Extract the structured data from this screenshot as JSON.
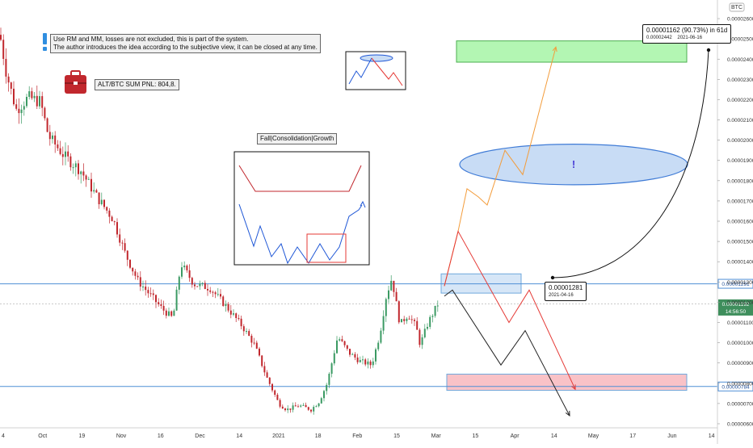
{
  "chart_data": {
    "type": "candlestick",
    "symbol_unit": "BTC",
    "x_tick_labels": [
      "4",
      "Oct",
      "19",
      "Nov",
      "16",
      "Dec",
      "14",
      "2021",
      "18",
      "Feb",
      "15",
      "Mar",
      "15",
      "Apr",
      "14",
      "May",
      "17",
      "Jun",
      "14"
    ],
    "y_tick_labels": [
      "0.00002600",
      "0.00002500",
      "0.00002400",
      "0.00002300",
      "0.00002200",
      "0.00002100",
      "0.00002000",
      "0.00001900",
      "0.00001800",
      "0.00001700",
      "0.00001600",
      "0.00001500",
      "0.00001400",
      "0.00001300",
      "0.00001200",
      "0.00001100",
      "0.00001000",
      "0.00000900",
      "0.00000800",
      "0.00000700",
      "0.00000600"
    ],
    "ylim": [
      5.8e-06,
      2.66e-05
    ],
    "series_path": [
      [
        0,
        2.52e-05
      ],
      [
        8,
        2.33e-05
      ],
      [
        20,
        2.15e-05
      ],
      [
        35,
        2.21e-05
      ],
      [
        50,
        2.19e-05
      ],
      [
        60,
        2.02e-05
      ],
      [
        80,
        1.92e-05
      ],
      [
        100,
        1.85e-05
      ],
      [
        120,
        1.72e-05
      ],
      [
        140,
        1.61e-05
      ],
      [
        155,
        1.44e-05
      ],
      [
        170,
        1.31e-05
      ],
      [
        185,
        1.24e-05
      ],
      [
        200,
        1.17e-05
      ],
      [
        214,
        1.12e-05
      ],
      [
        224,
        1.39e-05
      ],
      [
        240,
        1.29e-05
      ],
      [
        260,
        1.27e-05
      ],
      [
        280,
        1.18e-05
      ],
      [
        300,
        1.08e-05
      ],
      [
        315,
        9.9e-06
      ],
      [
        330,
        8.3e-06
      ],
      [
        345,
        7e-06
      ],
      [
        355,
        6.7e-06
      ],
      [
        370,
        6.9e-06
      ],
      [
        385,
        6.7e-06
      ],
      [
        395,
        7.1e-06
      ],
      [
        405,
        8e-06
      ],
      [
        418,
        1.03e-05
      ],
      [
        432,
        9.5e-06
      ],
      [
        445,
        9.1e-06
      ],
      [
        460,
        8.9e-06
      ],
      [
        470,
        1.04e-05
      ],
      [
        478,
        1.23e-05
      ],
      [
        485,
        1.32e-05
      ],
      [
        495,
        1.09e-05
      ],
      [
        505,
        1.14e-05
      ],
      [
        515,
        1.08e-05
      ],
      [
        520,
        9.9e-06
      ],
      [
        530,
        1.1e-05
      ],
      [
        542,
        1.192e-05
      ]
    ],
    "price_lines": [
      {
        "value": 1.291e-05,
        "label": "0.00001291",
        "color": "#4f8fd6"
      },
      {
        "value": 7.84e-06,
        "label": "0.00000784",
        "color": "#4f8fd6"
      }
    ],
    "current_price": {
      "value": 1.192e-05,
      "label": "0.00001192",
      "countdown": "14:56:50",
      "color": "#3e8e5c"
    },
    "zones": [
      {
        "name": "target",
        "top": 2.49e-05,
        "bottom": 2.385e-05,
        "color": "#a6f5a6",
        "border": "#4caf50"
      },
      {
        "name": "entry",
        "top": 1.34e-05,
        "bottom": 1.245e-05,
        "color": "#cfe2f6",
        "border": "#6fa8dc"
      },
      {
        "name": "stop",
        "top": 8.45e-06,
        "bottom": 7.65e-06,
        "color": "#f8b7bd",
        "border": "#6fa8dc"
      }
    ],
    "ellipse": {
      "center": 1.88e-05,
      "half_height": 1e-06,
      "label": "!",
      "fill": "#c8dcf5",
      "stroke": "#3f7bd6"
    },
    "scenarios": [
      {
        "color": "#f39c3b",
        "points": [
          [
            550,
            1.28e-05
          ],
          [
            567,
            1.55e-05
          ],
          [
            578,
            1.76e-05
          ],
          [
            592,
            1.72e-05
          ],
          [
            603,
            1.68e-05
          ],
          [
            625,
            1.95e-05
          ],
          [
            647,
            1.83e-05
          ],
          [
            688,
            2.46e-05
          ]
        ]
      },
      {
        "color": "#e53935",
        "points": [
          [
            550,
            1.28e-05
          ],
          [
            567,
            1.55e-05
          ],
          [
            630,
            1.1e-05
          ],
          [
            655,
            1.26e-05
          ],
          [
            712,
            7.7e-06
          ]
        ]
      },
      {
        "color": "#222222",
        "points": [
          [
            550,
            1.23e-05
          ],
          [
            560,
            1.26e-05
          ],
          [
            620,
            8.9e-06
          ],
          [
            650,
            1.06e-05
          ],
          [
            705,
            6.4e-06
          ]
        ]
      }
    ],
    "measure_arc": {
      "from_value": 1.281e-05,
      "to_value": 2.442e-05
    }
  },
  "annotations": {
    "note_line1": "Use RM and MM, losses are not excluded, this is part of the system.",
    "note_line2": "The author introduces the idea according to the subjective view, it can be closed at any time.",
    "pnl_label": "ALT/BTC SUM PNL: 804,8.",
    "inset_title": "Fall|Consolidation|Growth",
    "tooltip_top_line1": "0.00001162 (90.73%) in 61d",
    "tooltip_top_price": "0.00002442",
    "tooltip_top_date": "2021-06-16",
    "tooltip_low_price": "0.00001281",
    "tooltip_low_date": "2021-04-16"
  },
  "colors": {
    "up": "#3b9a63",
    "down": "#c1272d",
    "axis_text": "#333333",
    "grid": "#e6e6e6"
  },
  "icons": [
    "exclamation-icon",
    "briefcase-icon"
  ]
}
